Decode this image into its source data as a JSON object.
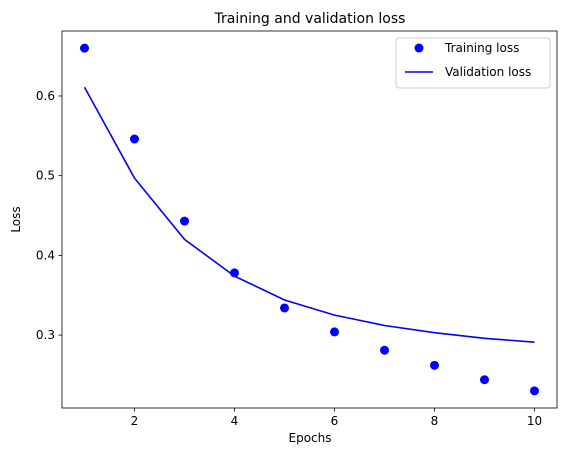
{
  "chart_data": {
    "type": "line",
    "title": "Training and validation loss",
    "xlabel": "Epochs",
    "ylabel": "Loss",
    "xlim": [
      0.55,
      10.45
    ],
    "ylim": [
      0.2085,
      0.6815
    ],
    "xticks": [
      2,
      4,
      6,
      8,
      10
    ],
    "yticks": [
      0.3,
      0.4,
      0.5,
      0.6
    ],
    "x": [
      1,
      2,
      3,
      4,
      5,
      6,
      7,
      8,
      9,
      10
    ],
    "grid": false,
    "legend_position": "top-right",
    "series": [
      {
        "name": "Training loss",
        "style": "scatter",
        "color": "#0000ff",
        "values": [
          0.66,
          0.546,
          0.443,
          0.378,
          0.334,
          0.304,
          0.281,
          0.262,
          0.244,
          0.23
        ]
      },
      {
        "name": "Validation loss",
        "style": "line",
        "color": "#0000ff",
        "values": [
          0.611,
          0.497,
          0.42,
          0.374,
          0.344,
          0.325,
          0.312,
          0.303,
          0.296,
          0.291
        ]
      }
    ]
  }
}
